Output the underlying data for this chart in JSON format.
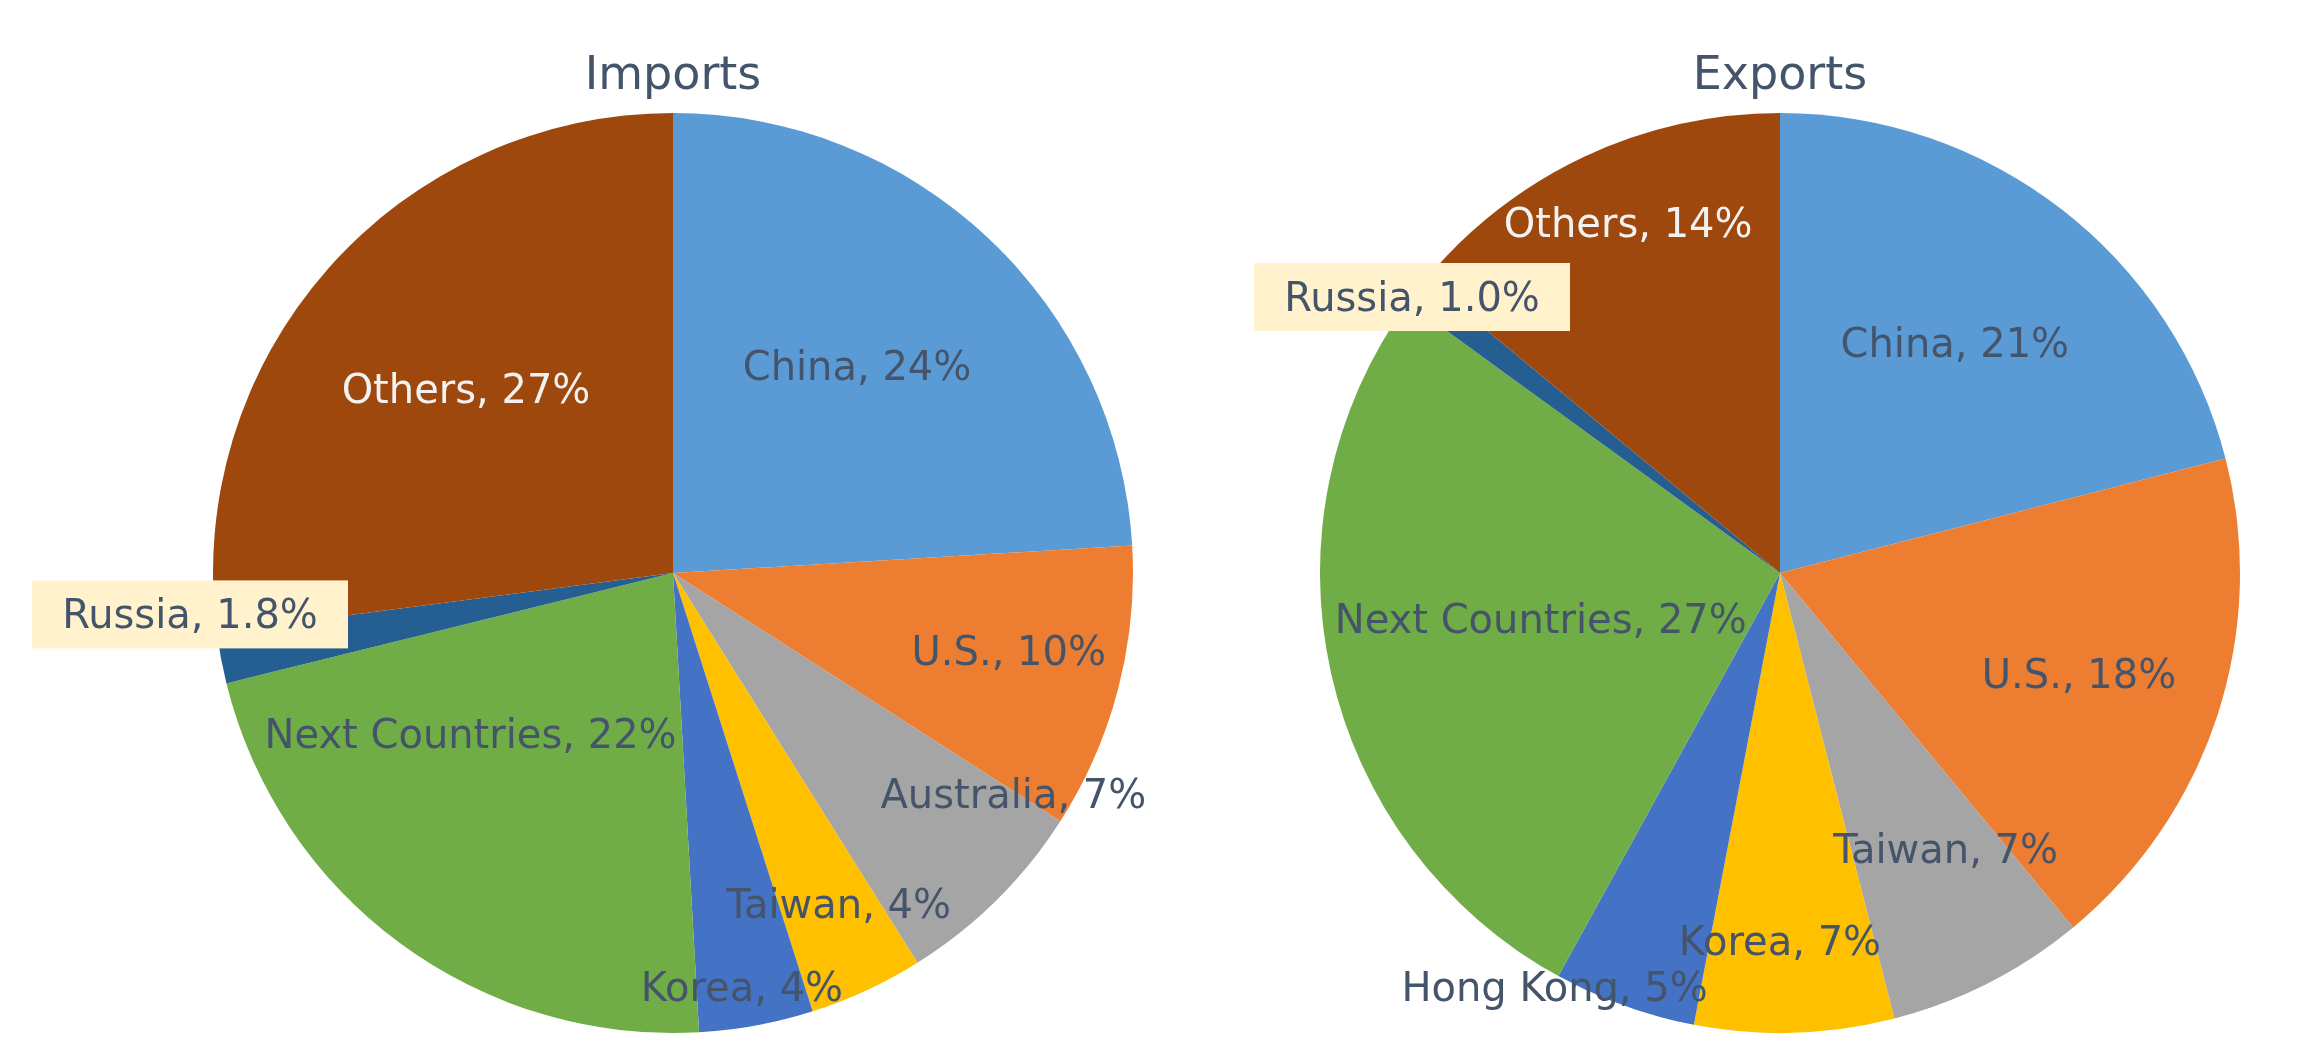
{
  "chart_data": [
    {
      "type": "pie",
      "title": "Imports",
      "categories": [
        "China",
        "U.S.",
        "Australia",
        "Taiwan",
        "Korea",
        "Next Countries",
        "Russia",
        "Others"
      ],
      "values": [
        24,
        10,
        7,
        4,
        4,
        22,
        1.8,
        27
      ],
      "value_labels": [
        "24%",
        "10%",
        "7%",
        "4%",
        "4%",
        "22%",
        "1.8%",
        "27%"
      ],
      "colors": [
        "#5b9bd5",
        "#ed7d31",
        "#a5a5a5",
        "#ffc000",
        "#4472c4",
        "#70ad47",
        "#255e91",
        "#9e480e"
      ]
    },
    {
      "type": "pie",
      "title": "Exports",
      "categories": [
        "China",
        "U.S.",
        "Taiwan",
        "Korea",
        "Hong Kong",
        "Next Countries",
        "Russia",
        "Others"
      ],
      "values": [
        21,
        18,
        7,
        7,
        5,
        27,
        1.0,
        14
      ],
      "value_labels": [
        "21%",
        "18%",
        "7%",
        "7%",
        "5%",
        "27%",
        "1.0%",
        "14%"
      ],
      "colors": [
        "#5b9bd5",
        "#ed7d31",
        "#a5a5a5",
        "#ffc000",
        "#4472c4",
        "#70ad47",
        "#255e91",
        "#9e480e"
      ]
    }
  ]
}
